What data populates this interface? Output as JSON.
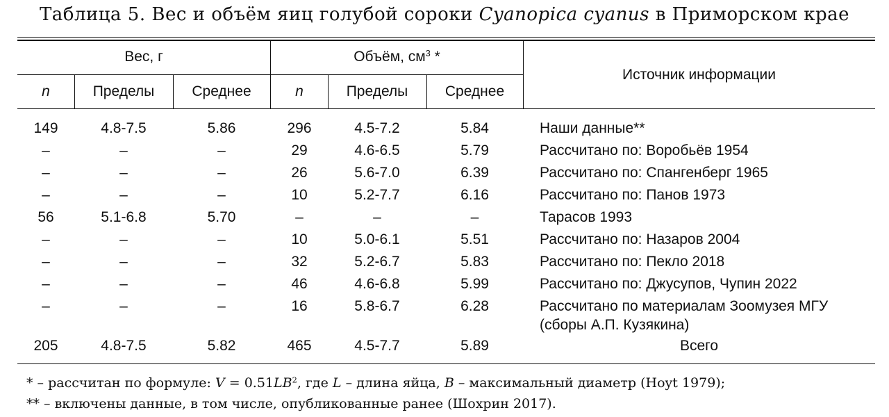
{
  "title": {
    "prefix": "Таблица 5. Вес и объём яиц голубой сороки",
    "species": "Cyanopica cyanus",
    "suffix": "в Приморском крае"
  },
  "header": {
    "weight_group": "Вес, г",
    "volume_group": "Объём, см",
    "volume_sup": "3",
    "volume_mark": "*",
    "source": "Источник информации",
    "n": "n",
    "range": "Пределы",
    "mean": "Среднее"
  },
  "rows": [
    {
      "w_n": "149",
      "w_range": "4.8-7.5",
      "w_mean": "5.86",
      "v_n": "296",
      "v_range": "4.5-7.2",
      "v_mean": "5.84",
      "source": "Наши данные**"
    },
    {
      "w_n": "–",
      "w_range": "–",
      "w_mean": "–",
      "v_n": "29",
      "v_range": "4.6-6.5",
      "v_mean": "5.79",
      "source": "Рассчитано по: Воробьёв 1954"
    },
    {
      "w_n": "–",
      "w_range": "–",
      "w_mean": "–",
      "v_n": "26",
      "v_range": "5.6-7.0",
      "v_mean": "6.39",
      "source": "Рассчитано по: Спангенберг 1965"
    },
    {
      "w_n": "–",
      "w_range": "–",
      "w_mean": "–",
      "v_n": "10",
      "v_range": "5.2-7.7",
      "v_mean": "6.16",
      "source": "Рассчитано по: Панов 1973"
    },
    {
      "w_n": "56",
      "w_range": "5.1-6.8",
      "w_mean": "5.70",
      "v_n": "–",
      "v_range": "–",
      "v_mean": "–",
      "source": "Тарасов 1993"
    },
    {
      "w_n": "–",
      "w_range": "–",
      "w_mean": "–",
      "v_n": "10",
      "v_range": "5.0-6.1",
      "v_mean": "5.51",
      "source": "Рассчитано по: Назаров 2004"
    },
    {
      "w_n": "–",
      "w_range": "–",
      "w_mean": "–",
      "v_n": "32",
      "v_range": "5.2-6.7",
      "v_mean": "5.83",
      "source": "Рассчитано по: Пекло 2018"
    },
    {
      "w_n": "–",
      "w_range": "–",
      "w_mean": "–",
      "v_n": "46",
      "v_range": "4.6-6.8",
      "v_mean": "5.99",
      "source": "Рассчитано по: Джусупов, Чупин 2022"
    },
    {
      "w_n": "–",
      "w_range": "–",
      "w_mean": "–",
      "v_n": "16",
      "v_range": "5.8-6.7",
      "v_mean": "6.28",
      "source": "Рассчитано по материалам Зоомузея МГУ",
      "source_line2": "(сборы А.П. Кузякина)"
    }
  ],
  "total": {
    "w_n": "205",
    "w_range": "4.8-7.5",
    "w_mean": "5.82",
    "v_n": "465",
    "v_range": "4.5-7.7",
    "v_mean": "5.89",
    "source": "Всего"
  },
  "footnotes": {
    "f1": {
      "mark": "* – рассчитан по формуле:",
      "var_v": "V",
      "eq": "= 0.51",
      "var_lb": "LB",
      "sup": "2",
      "where": ", где",
      "var_l": "L",
      "l_desc": "– длина яйца,",
      "var_b": "B",
      "b_desc": "– максимальный диаметр (Hoyt 1979);"
    },
    "f2": "** – включены данные, в том числе, опубликованные ранее (Шохрин 2017)."
  }
}
